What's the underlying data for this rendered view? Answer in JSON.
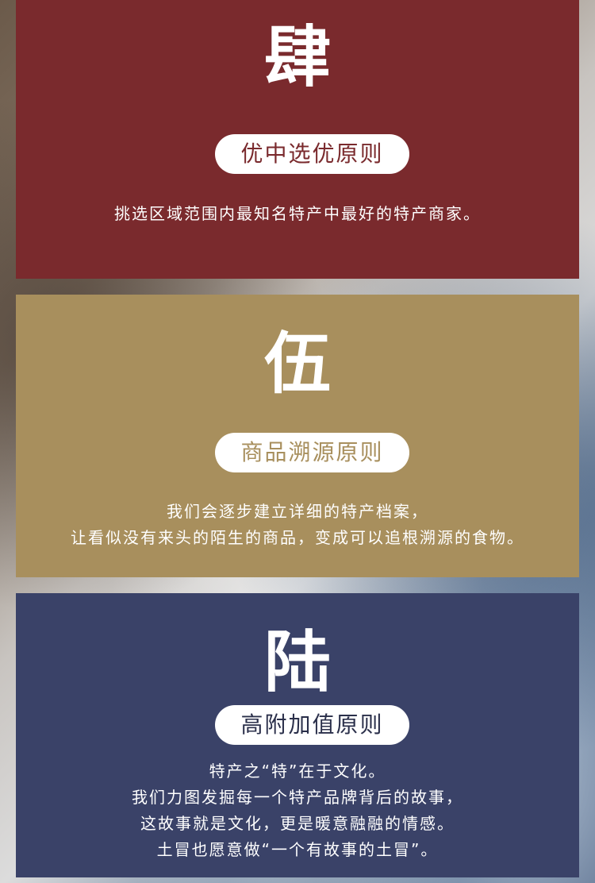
{
  "sections": [
    {
      "numeral": "肆",
      "title": "优中选优原则",
      "lines": [
        "挑选区域范围内最知名特产中最好的特产商家。"
      ]
    },
    {
      "numeral": "伍",
      "title": "商品溯源原则",
      "lines": [
        "我们会逐步建立详细的特产档案，",
        "让看似没有来头的陌生的商品，变成可以追根溯源的食物。"
      ]
    },
    {
      "numeral": "陆",
      "title": "高附加值原则",
      "lines": [
        "特产之“特”在于文化。",
        "我们力图发掘每一个特产品牌背后的故事，",
        "这故事就是文化，更是暖意融融的情感。",
        "土冒也愿意做“一个有故事的土冒”。"
      ]
    }
  ],
  "colors": {
    "section_4": "#7a2a2d",
    "section_5": "#a88f5d",
    "section_6": "#3a4268"
  }
}
